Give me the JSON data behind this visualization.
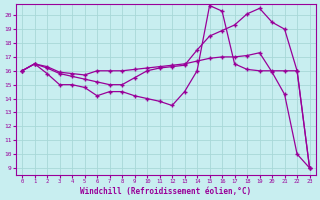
{
  "background_color": "#c8eef0",
  "grid_color": "#a8d8d8",
  "line_color": "#990099",
  "marker": "+",
  "xlabel": "Windchill (Refroidissement éolien,°C)",
  "xlim": [
    -0.5,
    23.5
  ],
  "ylim": [
    8.5,
    20.8
  ],
  "yticks": [
    9,
    10,
    11,
    12,
    13,
    14,
    15,
    16,
    17,
    18,
    19,
    20
  ],
  "xticks": [
    0,
    1,
    2,
    3,
    4,
    5,
    6,
    7,
    8,
    9,
    10,
    11,
    12,
    13,
    14,
    15,
    16,
    17,
    18,
    19,
    20,
    21,
    22,
    23
  ],
  "curve1_x": [
    0,
    1,
    2,
    3,
    4,
    5,
    6,
    7,
    8,
    9,
    10,
    11,
    12,
    13,
    14,
    15,
    16,
    17,
    18,
    19,
    20,
    21,
    22,
    23
  ],
  "curve1_y": [
    16.0,
    16.5,
    16.3,
    15.9,
    15.8,
    15.7,
    16.0,
    16.0,
    16.0,
    16.1,
    16.2,
    16.3,
    16.4,
    16.5,
    16.7,
    16.9,
    17.0,
    17.0,
    17.1,
    17.3,
    15.9,
    14.3,
    10.0,
    9.0
  ],
  "curve2_x": [
    0,
    1,
    2,
    3,
    4,
    5,
    6,
    7,
    8,
    9,
    10,
    11,
    12,
    13,
    14,
    15,
    16,
    17,
    18,
    19,
    20,
    21,
    22,
    23
  ],
  "curve2_y": [
    16.0,
    16.5,
    16.2,
    15.8,
    15.6,
    15.4,
    15.2,
    15.0,
    15.0,
    15.5,
    16.0,
    16.2,
    16.3,
    16.4,
    17.5,
    18.5,
    18.9,
    19.3,
    20.1,
    20.5,
    19.5,
    19.0,
    16.0,
    9.0
  ],
  "curve3_x": [
    0,
    1,
    2,
    3,
    4,
    5,
    6,
    7,
    8,
    9,
    10,
    11,
    12,
    13,
    14,
    15,
    16,
    17,
    18,
    19,
    20,
    21,
    22,
    23
  ],
  "curve3_y": [
    16.0,
    16.5,
    15.8,
    15.0,
    15.0,
    14.8,
    14.2,
    14.5,
    14.5,
    14.2,
    14.0,
    13.8,
    13.5,
    14.5,
    16.0,
    20.7,
    20.3,
    16.5,
    16.1,
    16.0,
    16.0,
    16.0,
    16.0,
    9.0
  ]
}
